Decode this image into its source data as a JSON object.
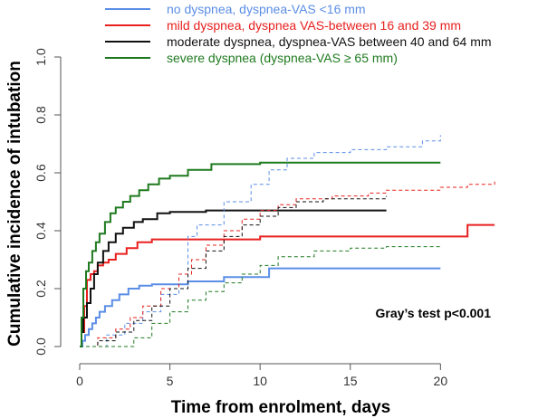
{
  "chart_data": {
    "type": "line",
    "xlabel": "Time from enrolment, days",
    "ylabel": "Cumulative incidence of intubation",
    "xlim": [
      0,
      24
    ],
    "ylim": [
      0,
      1.0
    ],
    "x_ticks": [
      0,
      5,
      10,
      15,
      20
    ],
    "y_ticks": [
      0.0,
      0.2,
      0.4,
      0.6,
      0.8,
      1.0
    ],
    "y_tick_labels": [
      "0.0",
      "0.2",
      "0.4",
      "0.6",
      "0.8",
      "1.0"
    ],
    "legend_position": "top",
    "annotation": "Gray’s test p<0.001",
    "series": [
      {
        "name": "no dyspnea, dyspnea-VAS <16 mm",
        "color": "#5b8ee6",
        "style": "solid",
        "x": [
          0,
          0.15,
          0.3,
          0.5,
          0.7,
          0.9,
          1.1,
          1.4,
          1.8,
          2.2,
          2.7,
          3.3,
          4.0,
          6.0,
          8.0,
          10.5,
          20.0
        ],
        "y": [
          0.0,
          0.02,
          0.04,
          0.06,
          0.08,
          0.1,
          0.12,
          0.14,
          0.16,
          0.18,
          0.2,
          0.21,
          0.215,
          0.225,
          0.24,
          0.27,
          0.27
        ]
      },
      {
        "name": "mild dyspnea, dyspnea VAS-between 16 and 39 mm",
        "color": "#e8201e",
        "style": "solid",
        "x": [
          0,
          0.1,
          0.25,
          0.4,
          0.6,
          0.8,
          1.0,
          1.3,
          1.6,
          2.0,
          2.6,
          3.2,
          4.0,
          7.0,
          10.0,
          21.5,
          23.0
        ],
        "y": [
          0.0,
          0.05,
          0.14,
          0.23,
          0.25,
          0.26,
          0.28,
          0.29,
          0.3,
          0.32,
          0.34,
          0.36,
          0.37,
          0.37,
          0.38,
          0.42,
          0.42
        ]
      },
      {
        "name": "moderate dyspnea, dyspnea-VAS between 40 and 64 mm",
        "color": "#111111",
        "style": "solid",
        "x": [
          0,
          0.1,
          0.2,
          0.4,
          0.6,
          0.8,
          1.0,
          1.3,
          1.6,
          2.0,
          2.4,
          3.0,
          3.5,
          4.3,
          5.0,
          7.0,
          10.5,
          17.0
        ],
        "y": [
          0.0,
          0.05,
          0.1,
          0.15,
          0.2,
          0.25,
          0.29,
          0.33,
          0.36,
          0.39,
          0.41,
          0.43,
          0.44,
          0.46,
          0.465,
          0.47,
          0.47,
          0.47
        ]
      },
      {
        "name": "severe dyspnea (dyspnea-VAS ≥ 65 mm)",
        "color": "#1f7a1f",
        "style": "solid",
        "x": [
          0,
          0.1,
          0.2,
          0.35,
          0.5,
          0.7,
          0.9,
          1.1,
          1.4,
          1.7,
          2.0,
          2.4,
          2.8,
          3.3,
          3.8,
          4.4,
          5.0,
          6.0,
          7.3,
          10.0,
          20.0
        ],
        "y": [
          0.0,
          0.1,
          0.2,
          0.26,
          0.29,
          0.33,
          0.36,
          0.39,
          0.43,
          0.46,
          0.48,
          0.5,
          0.52,
          0.54,
          0.56,
          0.58,
          0.59,
          0.61,
          0.63,
          0.635,
          0.635
        ]
      },
      {
        "name": "",
        "color": "#5b8ee6",
        "style": "dashed",
        "x": [
          0,
          1.5,
          2.5,
          3.5,
          4.5,
          5.5,
          6.0,
          6.5,
          8.0,
          9.5,
          10.5,
          11.5,
          13.0,
          15.0,
          17.0,
          19.0,
          20.0
        ],
        "y": [
          0.0,
          0.04,
          0.08,
          0.12,
          0.18,
          0.25,
          0.38,
          0.42,
          0.5,
          0.56,
          0.61,
          0.65,
          0.67,
          0.68,
          0.69,
          0.71,
          0.73
        ]
      },
      {
        "name": "",
        "color": "#e8201e",
        "style": "dashed",
        "x": [
          0,
          1.0,
          2.0,
          2.8,
          3.5,
          4.5,
          5.5,
          6.2,
          7.0,
          8.0,
          9.0,
          10.0,
          11.0,
          12.0,
          14.0,
          16.0,
          17.0,
          18.5,
          20.0,
          21.5,
          23.0
        ],
        "y": [
          0.0,
          0.03,
          0.06,
          0.1,
          0.14,
          0.2,
          0.25,
          0.3,
          0.35,
          0.4,
          0.44,
          0.47,
          0.49,
          0.51,
          0.52,
          0.53,
          0.54,
          0.54,
          0.55,
          0.56,
          0.57
        ]
      },
      {
        "name": "",
        "color": "#111111",
        "style": "dashed",
        "x": [
          0,
          1.0,
          2.0,
          3.0,
          4.0,
          5.0,
          6.0,
          7.0,
          8.0,
          9.0,
          10.0,
          11.0,
          12.0,
          13.5,
          15.0,
          17.0
        ],
        "y": [
          0.0,
          0.02,
          0.05,
          0.09,
          0.14,
          0.2,
          0.27,
          0.33,
          0.38,
          0.42,
          0.45,
          0.48,
          0.5,
          0.51,
          0.51,
          0.52
        ]
      },
      {
        "name": "",
        "color": "#1f7a1f",
        "style": "dashed",
        "x": [
          0,
          2.5,
          3.0,
          4.0,
          5.0,
          6.0,
          7.0,
          8.0,
          9.0,
          10.0,
          11.0,
          13.0,
          15.0,
          17.0,
          20.0
        ],
        "y": [
          0.0,
          0.0,
          0.03,
          0.08,
          0.12,
          0.16,
          0.19,
          0.22,
          0.25,
          0.28,
          0.31,
          0.33,
          0.34,
          0.345,
          0.35
        ]
      }
    ]
  }
}
